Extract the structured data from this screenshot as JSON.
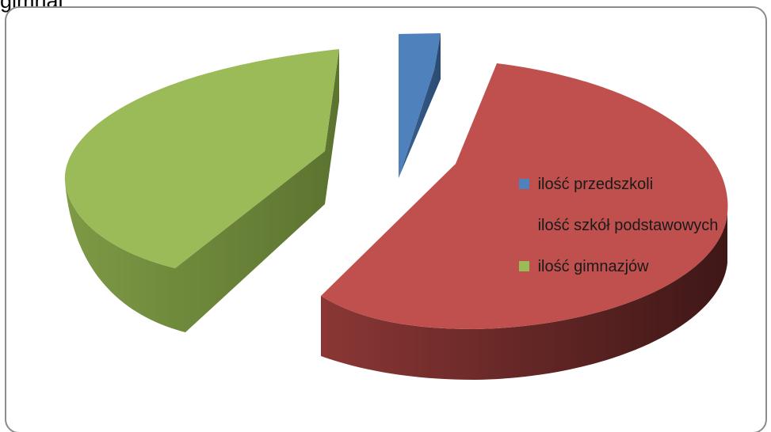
{
  "page": {
    "top_fragment": "gimnaj"
  },
  "chart_data": {
    "type": "pie",
    "title": "",
    "categories": [
      "ilość przedszkoli",
      "ilość szkół podstawowych",
      "ilość gimnazjów"
    ],
    "values": [
      3,
      57,
      40
    ],
    "value_unit": "percent",
    "legend_placement": "right",
    "exploded": true,
    "three_d": true,
    "colors": [
      "#4f81bd",
      "#c0504d",
      "#9bbb59"
    ]
  }
}
